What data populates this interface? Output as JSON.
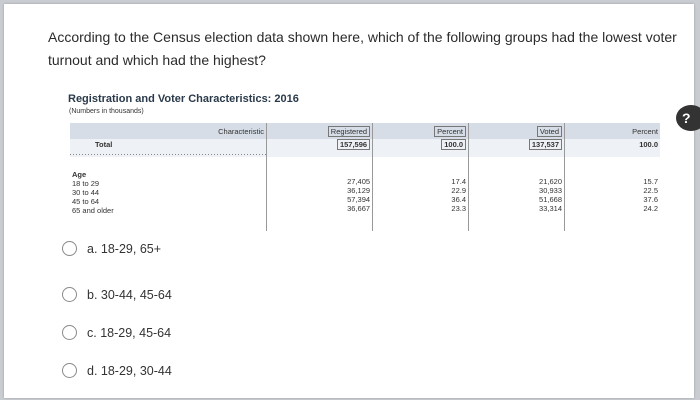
{
  "question": "According to the Census election data shown here, which of the following groups had the lowest voter turnout and which had the highest?",
  "figure": {
    "title": "Registration and Voter Characteristics: 2016",
    "subtitle": "(Numbers in thousands)",
    "headers": {
      "characteristic": "Characteristic",
      "registered": "Registered",
      "percent1": "Percent",
      "voted": "Voted",
      "percent2": "Percent"
    },
    "total": {
      "label": "Total",
      "registered": "157,596",
      "percent1": "100.0",
      "voted": "137,537",
      "percent2": "100.0"
    },
    "age_header": "Age",
    "rows": [
      {
        "label": "18 to 29",
        "registered": "27,405",
        "percent1": "17.4",
        "voted": "21,620",
        "percent2": "15.7"
      },
      {
        "label": "30 to 44",
        "registered": "36,129",
        "percent1": "22.9",
        "voted": "30,933",
        "percent2": "22.5"
      },
      {
        "label": "45 to 64",
        "registered": "57,394",
        "percent1": "36.4",
        "voted": "51,668",
        "percent2": "37.6"
      },
      {
        "label": "65 and older",
        "registered": "36,667",
        "percent1": "23.3",
        "voted": "33,314",
        "percent2": "24.2"
      }
    ]
  },
  "options": [
    {
      "label": "a. 18-29, 65+"
    },
    {
      "label": "b. 30-44, 45-64"
    },
    {
      "label": "c. 18-29, 45-64"
    },
    {
      "label": "d. 18-29, 30-44"
    }
  ],
  "side_badge": "?"
}
